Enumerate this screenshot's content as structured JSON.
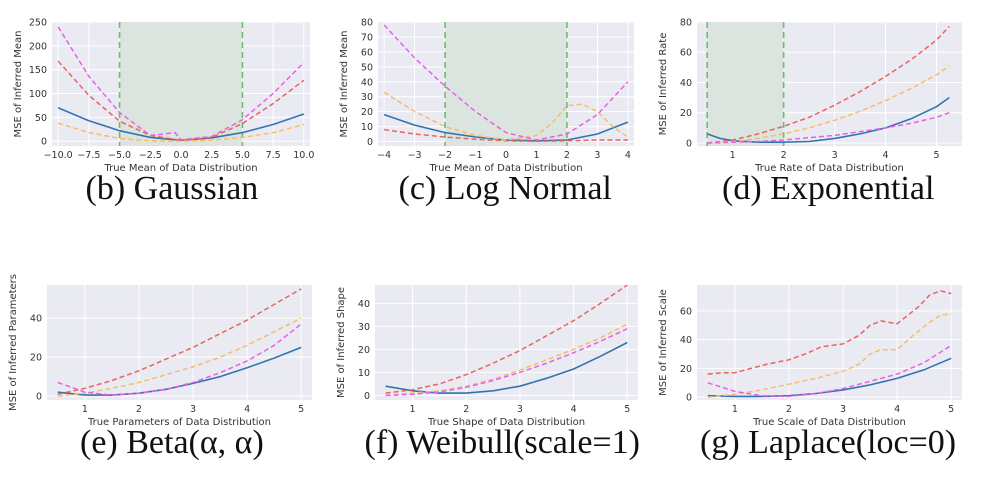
{
  "colors": {
    "plot_bg": "#eaeaf2",
    "blue": "#3274b0",
    "red": "#e8645e",
    "orange": "#f5bd6b",
    "magenta": "#e860e8",
    "band": "#d9e3dc",
    "band_line": "#6fbd6b"
  },
  "chart_data": [
    {
      "id": "b",
      "type": "line",
      "caption": "(b) Gaussian",
      "xlabel": "True Mean of Data Distribution",
      "ylabel": "MSE of Inferred Mean",
      "xlim": [
        -10.5,
        10.5
      ],
      "ylim": [
        -10,
        250
      ],
      "xticks": [
        -10.0,
        -7.5,
        -5.0,
        -2.5,
        0.0,
        2.5,
        5.0,
        7.5,
        10.0
      ],
      "xtick_labels": [
        "−10.0",
        "−7.5",
        "−5.0",
        "−2.5",
        "0.0",
        "2.5",
        "5.0",
        "7.5",
        "10.0"
      ],
      "yticks": [
        0,
        50,
        100,
        150,
        200,
        250
      ],
      "ytick_labels": [
        "0",
        "50",
        "100",
        "150",
        "200",
        "250"
      ],
      "shaded_region": [
        -5,
        5
      ],
      "series": [
        {
          "color": "#3274b0",
          "dashed": false,
          "x": [
            -10,
            -7.5,
            -5,
            -2.5,
            0,
            2.5,
            5,
            7.5,
            10
          ],
          "y": [
            70,
            43,
            22,
            8,
            2,
            7,
            18,
            35,
            57
          ]
        },
        {
          "color": "#e8645e",
          "dashed": true,
          "x": [
            -10,
            -7.5,
            -5,
            -2.5,
            0,
            2.5,
            5,
            7.5,
            10
          ],
          "y": [
            168,
            96,
            42,
            12,
            2,
            8,
            37,
            79,
            128
          ]
        },
        {
          "color": "#f5bd6b",
          "dashed": true,
          "x": [
            -10,
            -7.5,
            -5,
            -2.5,
            0,
            2.5,
            5,
            7.5,
            10
          ],
          "y": [
            38,
            18,
            6,
            1,
            0,
            2,
            8,
            18,
            35
          ]
        },
        {
          "color": "#e860e8",
          "dashed": true,
          "x": [
            -10,
            -7.5,
            -5,
            -2.5,
            -0.5,
            0,
            2.5,
            5,
            7.5,
            10
          ],
          "y": [
            240,
            136,
            60,
            12,
            18,
            3,
            10,
            45,
            100,
            165
          ]
        }
      ]
    },
    {
      "id": "c",
      "type": "line",
      "caption": "(c) Log Normal",
      "xlabel": "True Mean of Data Distribution",
      "ylabel": "MSE of Inferred Mean",
      "xlim": [
        -4.2,
        4.2
      ],
      "ylim": [
        -3,
        80
      ],
      "xticks": [
        -4,
        -3,
        -2,
        -1,
        0,
        1,
        2,
        3,
        4
      ],
      "xtick_labels": [
        "−4",
        "−3",
        "−2",
        "−1",
        "0",
        "1",
        "2",
        "3",
        "4"
      ],
      "yticks": [
        0,
        10,
        20,
        30,
        40,
        50,
        60,
        70,
        80
      ],
      "ytick_labels": [
        "0",
        "10",
        "20",
        "30",
        "40",
        "50",
        "60",
        "70",
        "80"
      ],
      "shaded_region": [
        -2,
        2
      ],
      "series": [
        {
          "color": "#3274b0",
          "dashed": false,
          "x": [
            -4,
            -3,
            -2,
            -1,
            0,
            1,
            2,
            3,
            4
          ],
          "y": [
            18,
            11,
            6,
            3,
            1,
            0.5,
            1,
            5,
            13
          ]
        },
        {
          "color": "#e8645e",
          "dashed": true,
          "x": [
            -4,
            -3,
            -2,
            -1,
            0,
            1,
            2,
            3,
            4
          ],
          "y": [
            8,
            5,
            3,
            1.5,
            0.5,
            0.2,
            0.5,
            1,
            1
          ]
        },
        {
          "color": "#f5bd6b",
          "dashed": true,
          "x": [
            -4,
            -3,
            -2,
            -1,
            0,
            1,
            1.5,
            2,
            2.5,
            3,
            3.5,
            4
          ],
          "y": [
            33,
            20,
            10,
            4,
            1,
            4,
            12,
            24,
            25,
            20,
            10,
            3
          ]
        },
        {
          "color": "#e860e8",
          "dashed": true,
          "x": [
            -4,
            -3,
            -2,
            -1,
            0,
            1,
            2,
            3,
            4
          ],
          "y": [
            78,
            56,
            37,
            20,
            6,
            1,
            5,
            18,
            40
          ]
        }
      ]
    },
    {
      "id": "d",
      "type": "line",
      "caption": "(d) Exponential",
      "xlabel": "True Rate of Data Distribution",
      "ylabel": "MSE of Inferred Rate",
      "xlim": [
        0.3,
        5.5
      ],
      "ylim": [
        -2,
        80
      ],
      "xticks": [
        1,
        2,
        3,
        4,
        5
      ],
      "xtick_labels": [
        "1",
        "2",
        "3",
        "4",
        "5"
      ],
      "yticks": [
        0,
        20,
        40,
        60,
        80
      ],
      "ytick_labels": [
        "0",
        "20",
        "40",
        "60",
        "80"
      ],
      "shaded_region": [
        0.5,
        2
      ],
      "series": [
        {
          "color": "#3274b0",
          "dashed": false,
          "x": [
            0.5,
            0.75,
            1,
            1.5,
            2,
            2.5,
            3,
            3.5,
            4,
            4.5,
            5,
            5.25
          ],
          "y": [
            6,
            3,
            1.5,
            0.5,
            0.5,
            1,
            3,
            6,
            10,
            16,
            24,
            30
          ]
        },
        {
          "color": "#e8645e",
          "dashed": true,
          "x": [
            0.5,
            1,
            1.5,
            2,
            2.5,
            3,
            3.5,
            4,
            4.5,
            5,
            5.25
          ],
          "y": [
            0,
            2,
            6,
            11,
            17,
            25,
            34,
            44,
            55,
            68,
            77
          ]
        },
        {
          "color": "#f5bd6b",
          "dashed": true,
          "x": [
            0.5,
            1,
            1.5,
            2,
            2.5,
            3,
            3.5,
            4,
            4.5,
            5,
            5.25
          ],
          "y": [
            0,
            1,
            3,
            6,
            10,
            15,
            21,
            28,
            36,
            45,
            51
          ]
        },
        {
          "color": "#e860e8",
          "dashed": true,
          "x": [
            0.5,
            1,
            1.5,
            2,
            2.5,
            3,
            3.5,
            4,
            4.5,
            5,
            5.25
          ],
          "y": [
            0,
            0.5,
            1,
            2,
            3.5,
            5,
            7.5,
            10,
            13,
            17,
            20
          ]
        }
      ]
    },
    {
      "id": "e",
      "type": "line",
      "caption": "(e) Beta(α, α)",
      "xlabel": "True Parameters of Data Distribution",
      "ylabel": "MSE of Inferred Parameters",
      "xlim": [
        0.3,
        5.2
      ],
      "ylim": [
        -2,
        57
      ],
      "xticks": [
        1,
        2,
        3,
        4,
        5
      ],
      "xtick_labels": [
        "1",
        "2",
        "3",
        "4",
        "5"
      ],
      "yticks": [
        0,
        20,
        40
      ],
      "ytick_labels": [
        "0",
        "20",
        "40"
      ],
      "shaded_region": null,
      "series": [
        {
          "color": "#3274b0",
          "dashed": false,
          "x": [
            0.5,
            1,
            1.5,
            2,
            2.5,
            3,
            3.5,
            4,
            4.5,
            5
          ],
          "y": [
            2,
            0.5,
            0.5,
            1.5,
            3.5,
            6.5,
            10,
            14.5,
            19.5,
            25
          ]
        },
        {
          "color": "#e8645e",
          "dashed": true,
          "x": [
            0.5,
            1,
            1.5,
            2,
            2.5,
            3,
            3.5,
            4,
            4.5,
            5
          ],
          "y": [
            1,
            4,
            8,
            13,
            19,
            25,
            32,
            39,
            47,
            55
          ]
        },
        {
          "color": "#f5bd6b",
          "dashed": true,
          "x": [
            0.5,
            1,
            1.5,
            2,
            2.5,
            3,
            3.5,
            4,
            4.5,
            5
          ],
          "y": [
            0,
            1.5,
            4,
            7,
            11,
            15,
            20,
            26,
            33,
            40
          ]
        },
        {
          "color": "#e860e8",
          "dashed": true,
          "x": [
            0.5,
            1,
            1.5,
            2,
            2.5,
            3,
            3.5,
            4,
            4.5,
            5
          ],
          "y": [
            7,
            2,
            0.5,
            1.5,
            3.5,
            7,
            12,
            18,
            26,
            37
          ]
        }
      ]
    },
    {
      "id": "f",
      "type": "line",
      "caption": "(f) Weibull(scale=1)",
      "xlabel": "True Shape of Data Distribution",
      "ylabel": "MSE of Inferred Shape",
      "xlim": [
        0.3,
        5.2
      ],
      "ylim": [
        -2,
        48
      ],
      "xticks": [
        1,
        2,
        3,
        4,
        5
      ],
      "xtick_labels": [
        "1",
        "2",
        "3",
        "4",
        "5"
      ],
      "yticks": [
        0,
        10,
        20,
        30,
        40
      ],
      "ytick_labels": [
        "0",
        "10",
        "20",
        "30",
        "40"
      ],
      "shaded_region": null,
      "series": [
        {
          "color": "#3274b0",
          "dashed": false,
          "x": [
            0.5,
            1,
            1.5,
            2,
            2.5,
            3,
            3.5,
            4,
            4.5,
            5
          ],
          "y": [
            4,
            2,
            1,
            1,
            2,
            4,
            7.5,
            11.5,
            17,
            23
          ]
        },
        {
          "color": "#e8645e",
          "dashed": true,
          "x": [
            0.5,
            1,
            1.5,
            2,
            2.5,
            3,
            3.5,
            4,
            4.5,
            5
          ],
          "y": [
            1,
            2.5,
            5,
            9,
            14,
            19.5,
            26,
            32.5,
            40,
            48
          ]
        },
        {
          "color": "#f5bd6b",
          "dashed": true,
          "x": [
            0.5,
            1,
            1.5,
            2,
            2.5,
            3,
            3.5,
            4,
            4.5,
            5
          ],
          "y": [
            0,
            1,
            2,
            4,
            7,
            11,
            15.5,
            20,
            25,
            31
          ]
        },
        {
          "color": "#e860e8",
          "dashed": true,
          "x": [
            0.5,
            1,
            1.5,
            2,
            2.5,
            3,
            3.5,
            4,
            4.5,
            5
          ],
          "y": [
            0,
            0.5,
            1.5,
            3.5,
            6.5,
            10,
            14,
            18.5,
            23.5,
            29
          ]
        }
      ]
    },
    {
      "id": "g",
      "type": "line",
      "caption": "(g) Laplace(loc=0)",
      "xlabel": "True Scale of Data Distribution",
      "ylabel": "MSE of Inferred Scale",
      "xlim": [
        0.3,
        5.2
      ],
      "ylim": [
        -2,
        78
      ],
      "xticks": [
        1,
        2,
        3,
        4,
        5
      ],
      "xtick_labels": [
        "1",
        "2",
        "3",
        "4",
        "5"
      ],
      "yticks": [
        0,
        20,
        40,
        60
      ],
      "ytick_labels": [
        "0",
        "20",
        "40",
        "60"
      ],
      "shaded_region": null,
      "series": [
        {
          "color": "#3274b0",
          "dashed": false,
          "x": [
            0.5,
            1,
            1.5,
            2,
            2.5,
            3,
            3.5,
            4,
            4.5,
            5
          ],
          "y": [
            1,
            0.5,
            0.5,
            1,
            2.5,
            5,
            8.5,
            13,
            19,
            27
          ]
        },
        {
          "color": "#e8645e",
          "dashed": true,
          "x": [
            0.5,
            0.8,
            1,
            1.3,
            1.6,
            2,
            2.3,
            2.6,
            3,
            3.3,
            3.5,
            3.7,
            4,
            4.2,
            4.4,
            4.6,
            4.8,
            5
          ],
          "y": [
            16,
            17,
            17,
            20,
            23,
            26,
            30,
            35,
            37,
            43,
            50,
            53,
            51,
            57,
            63,
            71,
            74,
            72
          ]
        },
        {
          "color": "#f5bd6b",
          "dashed": true,
          "x": [
            0.5,
            1,
            1.5,
            2,
            2.5,
            3,
            3.3,
            3.5,
            3.7,
            4,
            4.3,
            4.6,
            4.8,
            5
          ],
          "y": [
            0,
            2,
            5,
            9,
            13,
            18,
            23,
            30,
            33,
            33,
            43,
            52,
            57,
            58
          ]
        },
        {
          "color": "#e860e8",
          "dashed": true,
          "x": [
            0.5,
            1,
            1.5,
            2,
            2.5,
            3,
            3.5,
            4,
            4.5,
            5
          ],
          "y": [
            10,
            4,
            1,
            0.5,
            2.5,
            6,
            11,
            16,
            24,
            36
          ]
        }
      ]
    }
  ]
}
